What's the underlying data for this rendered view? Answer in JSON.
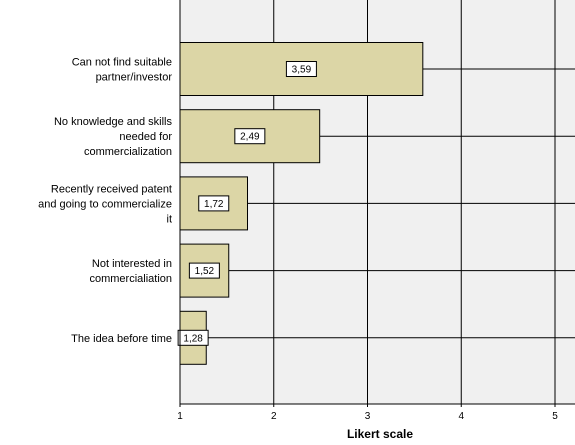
{
  "chart_data": {
    "type": "bar",
    "orientation": "horizontal",
    "categories": [
      [
        "Can not find suitable",
        "partner/investor"
      ],
      [
        "No knowledge and skills",
        "needed for",
        "commercialization"
      ],
      [
        "Recently received patent",
        "and going to commercialize",
        "it"
      ],
      [
        "Not interested in",
        "commercialiation"
      ],
      [
        "The idea before time"
      ]
    ],
    "values": [
      3.59,
      2.49,
      1.72,
      1.52,
      1.28
    ],
    "data_labels": [
      "3,59",
      "2,49",
      "1,72",
      "1,52",
      "1,28"
    ],
    "xlabel": "Likert scale",
    "xlim": [
      1,
      5.2
    ],
    "xticks": [
      1,
      2,
      3,
      4,
      5
    ],
    "xtick_labels": [
      "1",
      "2",
      "3",
      "4",
      "5"
    ],
    "grid": true,
    "colors": {
      "bar_fill": "#DCD6A6",
      "bar_stroke": "#000000",
      "plot_background": "#F0F0F0",
      "grid": "#000000"
    }
  }
}
